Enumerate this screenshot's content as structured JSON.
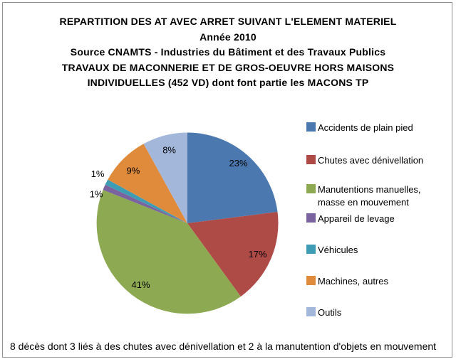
{
  "frame": {
    "border_color": "#909090"
  },
  "chart_data": {
    "type": "pie",
    "title_lines": [
      "REPARTITION DES AT AVEC ARRET SUIVANT L'ELEMENT MATERIEL",
      "Année 2010",
      "Source CNAMTS - Industries du Bâtiment et des Travaux Publics",
      "TRAVAUX DE MACONNERIE ET DE GROS-OEUVRE HORS MAISONS",
      "INDIVIDUELLES (452 VD) dont font partie les MACONS TP"
    ],
    "labels": [
      "Accidents de plain pied",
      "Chutes avec dénivellation",
      "Manutentions manuelles,\nmasse en mouvement",
      "Appareil de levage",
      "Véhicules",
      "Machines, autres",
      "Outils"
    ],
    "values": [
      23,
      17,
      41,
      1,
      1,
      9,
      8
    ],
    "colors": [
      "#4b79af",
      "#af4b46",
      "#8da951",
      "#7a639f",
      "#3e9cb4",
      "#e08b3c",
      "#a3b7db"
    ],
    "value_suffix": "%",
    "start_angle_deg": 0,
    "direction": "clockwise",
    "legend_position": "right",
    "annotation": "8 décès dont 3 liés à des chutes avec dénivellation et 2 à la manutention d'objets en mouvement"
  }
}
